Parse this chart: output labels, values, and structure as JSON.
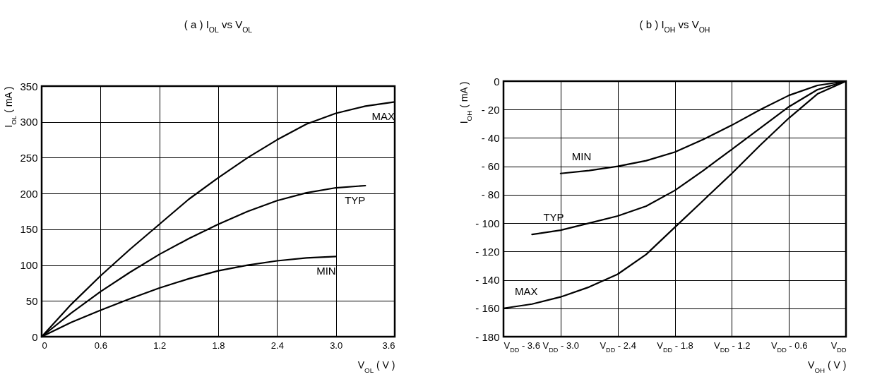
{
  "chart_data": [
    {
      "type": "line",
      "title": "( a ) I$_{OL}$ vs V$_{OL}$",
      "xlabel": "V$_{OL}$ ( V )",
      "ylabel": "I$_{OL}$ ( mA )",
      "xlim": [
        0,
        3.6
      ],
      "ylim": [
        0,
        350
      ],
      "xticks": [
        0,
        0.6,
        1.2,
        1.8,
        2.4,
        {
          "value": 3.0,
          "label": "3.0"
        },
        3.6
      ],
      "yticks": [
        0,
        50,
        100,
        150,
        200,
        250,
        300,
        350
      ],
      "grid": true,
      "marker": "none",
      "line_style": "solid",
      "series": [
        {
          "name": "MAX",
          "color": "#000000",
          "x": [
            0,
            0.3,
            0.6,
            0.9,
            1.2,
            1.5,
            1.8,
            2.1,
            2.4,
            2.7,
            3.0,
            3.3,
            3.6
          ],
          "values": [
            0,
            45,
            85,
            122,
            157,
            192,
            222,
            250,
            275,
            297,
            312,
            322,
            328
          ]
        },
        {
          "name": "TYP",
          "color": "#000000",
          "x": [
            0,
            0.3,
            0.6,
            0.9,
            1.2,
            1.5,
            1.8,
            2.1,
            2.4,
            2.7,
            3.0,
            3.3
          ],
          "values": [
            0,
            33,
            63,
            90,
            115,
            137,
            157,
            175,
            190,
            201,
            208,
            211
          ]
        },
        {
          "name": "MIN",
          "color": "#000000",
          "x": [
            0,
            0.3,
            0.6,
            0.9,
            1.2,
            1.5,
            1.8,
            2.1,
            2.4,
            2.7,
            3.0
          ],
          "values": [
            0,
            20,
            37,
            53,
            68,
            81,
            92,
            100,
            106,
            110,
            112
          ]
        }
      ]
    },
    {
      "type": "line",
      "title": "( b ) I$_{OH}$ vs V$_{OH}$",
      "xlabel": "V$_{OH}$ ( V )",
      "ylabel": "I$_{OH}$ ( mA )",
      "xlim": [
        -3.6,
        0
      ],
      "ylim": [
        -180,
        0
      ],
      "xticks": [
        {
          "value": -3.6,
          "label": "V$_{DD}$ - 3.6"
        },
        {
          "value": -3.0,
          "label": "V$_{DD}$ - 3.0"
        },
        {
          "value": -2.4,
          "label": "V$_{DD}$ - 2.4"
        },
        {
          "value": -1.8,
          "label": "V$_{DD}$ - 1.8"
        },
        {
          "value": -1.2,
          "label": "V$_{DD}$ - 1.2"
        },
        {
          "value": -0.6,
          "label": "V$_{DD}$ - 0.6"
        },
        {
          "value": 0,
          "label": "V$_{DD}$"
        }
      ],
      "yticks": [
        {
          "value": -180,
          "label": "- 180"
        },
        {
          "value": -160,
          "label": "- 160"
        },
        {
          "value": -140,
          "label": "- 140"
        },
        {
          "value": -120,
          "label": "- 120"
        },
        {
          "value": -100,
          "label": "- 100"
        },
        {
          "value": -80,
          "label": "- 80"
        },
        {
          "value": -60,
          "label": "- 60"
        },
        {
          "value": -40,
          "label": "- 40"
        },
        {
          "value": -20,
          "label": "- 20"
        },
        0
      ],
      "grid": true,
      "marker": "none",
      "line_style": "solid",
      "series": [
        {
          "name": "MIN",
          "color": "#000000",
          "x": [
            -3.0,
            -2.7,
            -2.4,
            -2.1,
            -1.8,
            -1.5,
            -1.2,
            -0.9,
            -0.6,
            -0.3,
            0
          ],
          "values": [
            -65,
            -63,
            -60,
            -56,
            -50,
            -41,
            -31,
            -20,
            -10,
            -3,
            0
          ]
        },
        {
          "name": "TYP",
          "color": "#000000",
          "x": [
            -3.3,
            -3.0,
            -2.7,
            -2.4,
            -2.1,
            -1.8,
            -1.5,
            -1.2,
            -0.9,
            -0.6,
            -0.3,
            0
          ],
          "values": [
            -108,
            -105,
            -100,
            -95,
            -88,
            -77,
            -63,
            -48,
            -33,
            -18,
            -6,
            0
          ]
        },
        {
          "name": "MAX",
          "color": "#000000",
          "x": [
            -3.6,
            -3.3,
            -3.0,
            -2.7,
            -2.4,
            -2.1,
            -1.8,
            -1.5,
            -1.2,
            -0.9,
            -0.6,
            -0.3,
            0
          ],
          "values": [
            -160,
            -157,
            -152,
            -145,
            -136,
            -122,
            -103,
            -84,
            -65,
            -45,
            -26,
            -9,
            0
          ]
        }
      ]
    }
  ]
}
